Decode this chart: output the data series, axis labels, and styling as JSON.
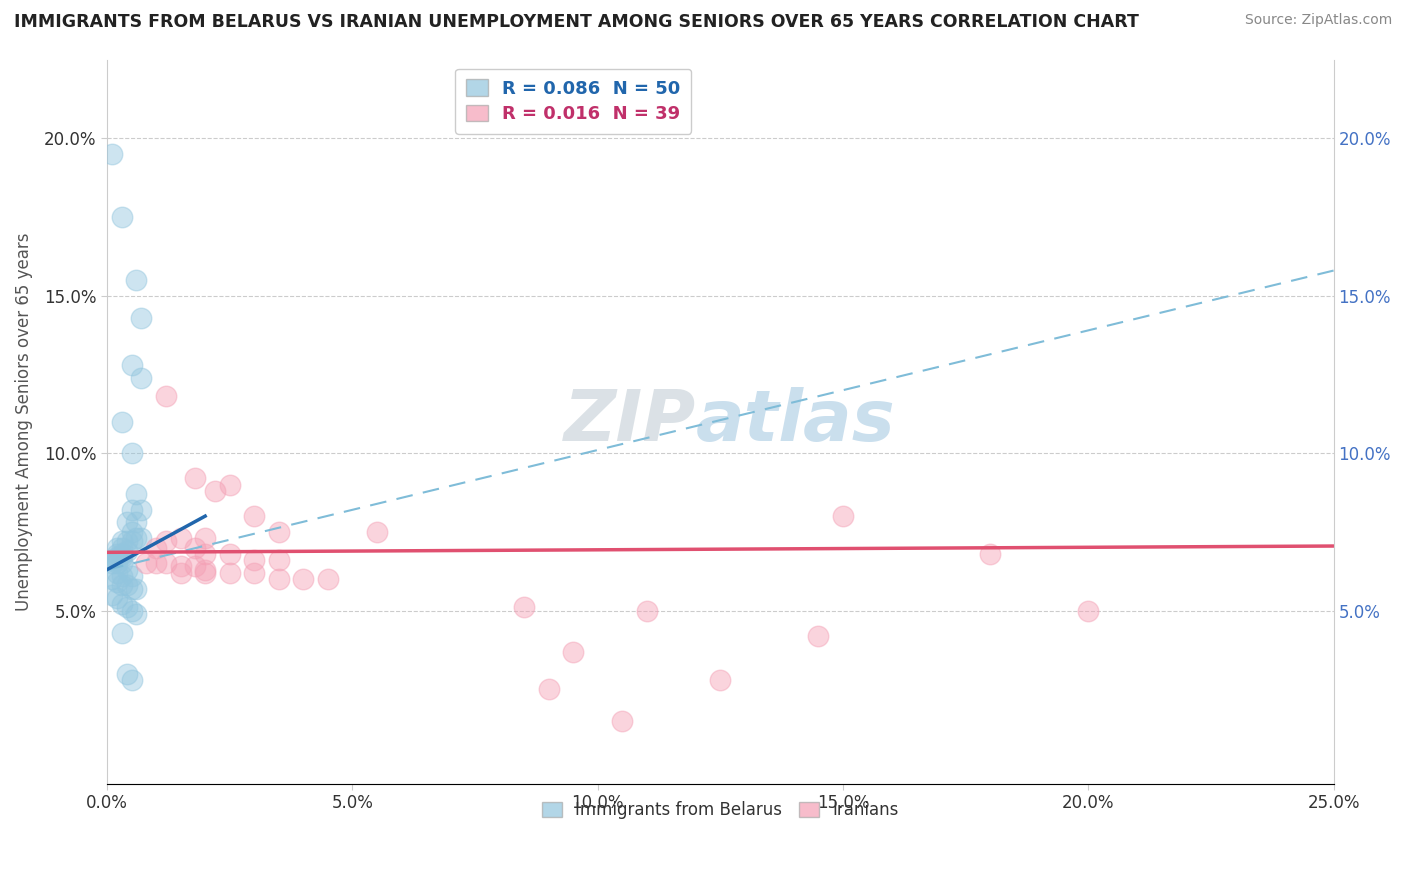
{
  "title": "IMMIGRANTS FROM BELARUS VS IRANIAN UNEMPLOYMENT AMONG SENIORS OVER 65 YEARS CORRELATION CHART",
  "source": "Source: ZipAtlas.com",
  "ylabel": "Unemployment Among Seniors over 65 years",
  "legend_entry1": "R = 0.086  N = 50",
  "legend_entry2": "R = 0.016  N = 39",
  "legend_label1": "Immigrants from Belarus",
  "legend_label2": "Iranians",
  "blue_color": "#92c5de",
  "pink_color": "#f4a0b5",
  "blue_line_color": "#2166ac",
  "pink_line_color": "#e05070",
  "dash_line_color": "#7fbcd8",
  "watermark_color": "#d0dce8",
  "xlim": [
    0.0,
    0.25
  ],
  "ylim": [
    -0.005,
    0.225
  ],
  "xticks": [
    0.0,
    0.05,
    0.1,
    0.15,
    0.2,
    0.25
  ],
  "yticks_left": [
    0.05,
    0.1,
    0.15,
    0.2
  ],
  "yticks_right": [
    0.05,
    0.1,
    0.15,
    0.2
  ],
  "blue_scatter": [
    [
      0.001,
      0.195
    ],
    [
      0.003,
      0.175
    ],
    [
      0.006,
      0.155
    ],
    [
      0.007,
      0.143
    ],
    [
      0.005,
      0.128
    ],
    [
      0.007,
      0.124
    ],
    [
      0.003,
      0.11
    ],
    [
      0.005,
      0.1
    ],
    [
      0.006,
      0.087
    ],
    [
      0.005,
      0.082
    ],
    [
      0.007,
      0.082
    ],
    [
      0.004,
      0.078
    ],
    [
      0.006,
      0.078
    ],
    [
      0.005,
      0.075
    ],
    [
      0.006,
      0.073
    ],
    [
      0.007,
      0.073
    ],
    [
      0.003,
      0.072
    ],
    [
      0.004,
      0.072
    ],
    [
      0.005,
      0.072
    ],
    [
      0.002,
      0.07
    ],
    [
      0.003,
      0.07
    ],
    [
      0.004,
      0.069
    ],
    [
      0.002,
      0.068
    ],
    [
      0.003,
      0.068
    ],
    [
      0.002,
      0.067
    ],
    [
      0.003,
      0.067
    ],
    [
      0.001,
      0.066
    ],
    [
      0.002,
      0.066
    ],
    [
      0.001,
      0.065
    ],
    [
      0.002,
      0.065
    ],
    [
      0.003,
      0.065
    ],
    [
      0.004,
      0.063
    ],
    [
      0.002,
      0.062
    ],
    [
      0.003,
      0.061
    ],
    [
      0.005,
      0.061
    ],
    [
      0.001,
      0.06
    ],
    [
      0.002,
      0.059
    ],
    [
      0.003,
      0.058
    ],
    [
      0.004,
      0.058
    ],
    [
      0.005,
      0.057
    ],
    [
      0.006,
      0.057
    ],
    [
      0.001,
      0.055
    ],
    [
      0.002,
      0.054
    ],
    [
      0.003,
      0.052
    ],
    [
      0.004,
      0.051
    ],
    [
      0.005,
      0.05
    ],
    [
      0.006,
      0.049
    ],
    [
      0.003,
      0.043
    ],
    [
      0.004,
      0.03
    ],
    [
      0.005,
      0.028
    ]
  ],
  "pink_scatter": [
    [
      0.012,
      0.118
    ],
    [
      0.018,
      0.092
    ],
    [
      0.025,
      0.09
    ],
    [
      0.022,
      0.088
    ],
    [
      0.03,
      0.08
    ],
    [
      0.035,
      0.075
    ],
    [
      0.015,
      0.073
    ],
    [
      0.02,
      0.073
    ],
    [
      0.012,
      0.072
    ],
    [
      0.01,
      0.07
    ],
    [
      0.018,
      0.07
    ],
    [
      0.02,
      0.068
    ],
    [
      0.025,
      0.068
    ],
    [
      0.03,
      0.066
    ],
    [
      0.035,
      0.066
    ],
    [
      0.008,
      0.065
    ],
    [
      0.01,
      0.065
    ],
    [
      0.012,
      0.065
    ],
    [
      0.015,
      0.064
    ],
    [
      0.018,
      0.064
    ],
    [
      0.02,
      0.063
    ],
    [
      0.015,
      0.062
    ],
    [
      0.02,
      0.062
    ],
    [
      0.025,
      0.062
    ],
    [
      0.03,
      0.062
    ],
    [
      0.035,
      0.06
    ],
    [
      0.04,
      0.06
    ],
    [
      0.045,
      0.06
    ],
    [
      0.055,
      0.075
    ],
    [
      0.15,
      0.08
    ],
    [
      0.18,
      0.068
    ],
    [
      0.2,
      0.05
    ],
    [
      0.085,
      0.051
    ],
    [
      0.11,
      0.05
    ],
    [
      0.145,
      0.042
    ],
    [
      0.095,
      0.037
    ],
    [
      0.125,
      0.028
    ],
    [
      0.09,
      0.025
    ],
    [
      0.105,
      0.015
    ]
  ],
  "blue_line_x0": 0.0,
  "blue_line_x1": 0.02,
  "blue_line_y0": 0.063,
  "blue_line_y1": 0.08,
  "pink_line_x0": 0.0,
  "pink_line_x1": 0.25,
  "pink_line_y0": 0.0685,
  "pink_line_y1": 0.0705,
  "dash_line_x0": 0.0,
  "dash_line_x1": 0.25,
  "dash_line_y0": 0.063,
  "dash_line_y1": 0.158
}
